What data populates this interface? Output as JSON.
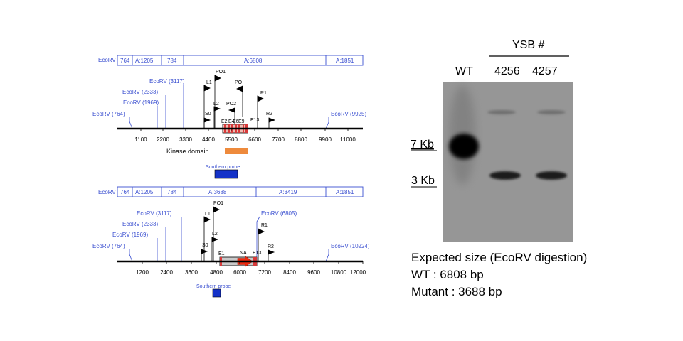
{
  "wt_map": {
    "restriction_bar": {
      "enzyme": "EcoRV",
      "segments": [
        "764",
        "A:1205",
        "784",
        "A:6808",
        "A:1851"
      ]
    },
    "sites": [
      "EcoRV (764)",
      "EcoRV (1969)",
      "EcoRV (2333)",
      "EcoRV (3117)",
      "EcoRV (9925)"
    ],
    "primers": [
      "PO1",
      "L1",
      "PO",
      "R1",
      "S0",
      "L2",
      "PO2",
      "R2"
    ],
    "exons": [
      "E2",
      "E4",
      "E6",
      "E9",
      "E13"
    ],
    "axis_ticks": [
      "1100",
      "2200",
      "3300",
      "4400",
      "5500",
      "6600",
      "7700",
      "8800",
      "9900",
      "11000"
    ],
    "kinase_label": "Kinase domain",
    "probe_label": "Southern probe"
  },
  "mut_map": {
    "restriction_bar": {
      "enzyme": "EcoRV",
      "segments": [
        "764",
        "A:1205",
        "784",
        "A:3688",
        "A:3419",
        "A:1851"
      ]
    },
    "sites": [
      "EcoRV (764)",
      "EcoRV (1969)",
      "EcoRV (2333)",
      "EcoRV (3117)",
      "EcoRV (6805)",
      "EcoRV (10224)"
    ],
    "primers": [
      "PO1",
      "L1",
      "R1",
      "S0",
      "L2",
      "R2"
    ],
    "exons": [
      "E1",
      "NAT",
      "E13"
    ],
    "axis_ticks": [
      "1200",
      "2400",
      "3600",
      "4800",
      "6000",
      "7200",
      "8400",
      "9600",
      "10800",
      "12000"
    ],
    "probe_label": "Southern probe"
  },
  "gel": {
    "group_label": "YSB #",
    "lanes": [
      "WT",
      "4256",
      "4257"
    ],
    "markers": [
      "7 Kb",
      "3 Kb"
    ]
  },
  "caption": {
    "line1": "Expected size (EcoRV digestion)",
    "line2": "WT : 6808 bp",
    "line3": "Mutant : 3688 bp"
  },
  "colors": {
    "label_blue": "#3a4fd0",
    "kinase_orange": "#ee8a3c",
    "probe_blue": "#1432c8",
    "exon_red": "#d83a3a",
    "nat_arrow": "#ee2a0f"
  }
}
